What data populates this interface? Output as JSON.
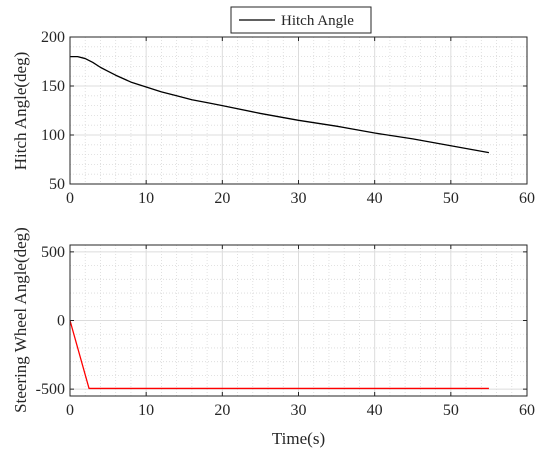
{
  "chart_data": [
    {
      "type": "line",
      "title": "",
      "xlabel": "",
      "ylabel": "Hitch Angle(deg)",
      "xlim": [
        0,
        60
      ],
      "ylim": [
        50,
        200
      ],
      "xticks": [
        0,
        10,
        20,
        30,
        40,
        50,
        60
      ],
      "yticks": [
        50,
        100,
        150,
        200
      ],
      "grid": "major and minor (dotted)",
      "legend": {
        "placement": "top-center (above axes)",
        "entries": [
          "Hitch Angle"
        ]
      },
      "series": [
        {
          "name": "Hitch Angle",
          "color": "#000000",
          "x": [
            0,
            1,
            2,
            3,
            4,
            5,
            6,
            8,
            10,
            12,
            14,
            16,
            18,
            20,
            25,
            30,
            35,
            40,
            45,
            50,
            55
          ],
          "y": [
            180,
            180,
            178,
            174,
            169,
            165,
            161,
            154,
            149,
            144,
            140,
            136,
            133,
            130,
            122,
            115,
            109,
            102,
            96,
            89,
            82
          ]
        }
      ]
    },
    {
      "type": "line",
      "title": "",
      "xlabel": "Time(s)",
      "ylabel": "Steering Wheel Angle(deg)",
      "xlim": [
        0,
        60
      ],
      "ylim": [
        -550,
        550
      ],
      "xticks": [
        0,
        10,
        20,
        30,
        40,
        50,
        60
      ],
      "yticks": [
        -500,
        0,
        500
      ],
      "grid": "major and minor (dotted)",
      "legend": null,
      "series": [
        {
          "color": "#ff0000",
          "x": [
            0,
            2.5,
            55
          ],
          "y": [
            0,
            -495,
            -495
          ]
        }
      ]
    }
  ]
}
